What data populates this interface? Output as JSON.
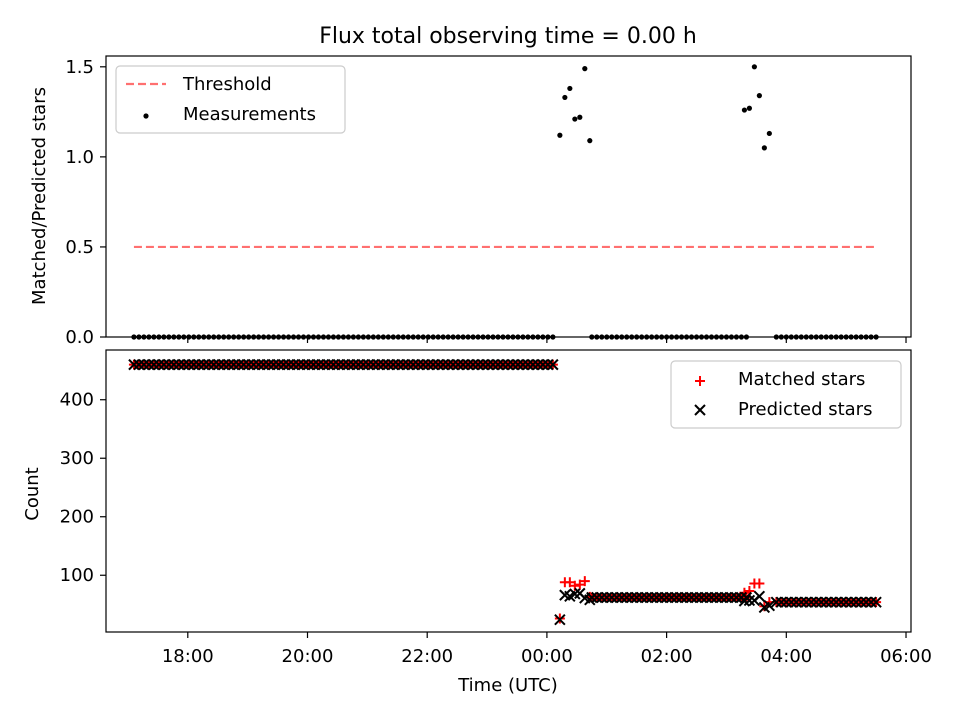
{
  "title": "Flux total observing time = 0.00 h",
  "xlabel": "Time (UTC)",
  "x_ticks": [
    "18:00",
    "20:00",
    "22:00",
    "00:00",
    "02:00",
    "04:00",
    "06:00"
  ],
  "chart_data": [
    {
      "type": "scatter",
      "ylabel": "Matched/Predicted stars",
      "ylim": [
        0,
        1.56
      ],
      "y_ticks": [
        "0.0",
        "0.5",
        "1.0",
        "1.5"
      ],
      "xlim": [
        "16:38",
        "06:05"
      ],
      "legend_location": "top-left",
      "legend": {
        "threshold": "Threshold",
        "measurements": "Measurements"
      },
      "threshold": {
        "name": "Threshold",
        "color": "#ff7070",
        "style": "dashed",
        "value": 0.5,
        "x_start": "17:06",
        "x_end": "05:30"
      },
      "measurements": {
        "name": "Measurements",
        "color": "#000000",
        "zero_segments": [
          {
            "start": "17:06",
            "end": "00:10",
            "step_minutes": 5,
            "value": 0.0
          },
          {
            "start": "00:45",
            "end": "03:20",
            "step_minutes": 5,
            "value": 0.0
          },
          {
            "start": "03:50",
            "end": "05:30",
            "step_minutes": 5,
            "value": 0.0
          }
        ],
        "points": [
          {
            "x": "00:13",
            "y": 1.12
          },
          {
            "x": "00:18",
            "y": 1.33
          },
          {
            "x": "00:23",
            "y": 1.38
          },
          {
            "x": "00:28",
            "y": 1.21
          },
          {
            "x": "00:33",
            "y": 1.22
          },
          {
            "x": "00:38",
            "y": 1.49
          },
          {
            "x": "00:43",
            "y": 1.09
          },
          {
            "x": "03:18",
            "y": 1.26
          },
          {
            "x": "03:23",
            "y": 1.27
          },
          {
            "x": "03:28",
            "y": 1.5
          },
          {
            "x": "03:33",
            "y": 1.34
          },
          {
            "x": "03:38",
            "y": 1.05
          },
          {
            "x": "03:43",
            "y": 1.13
          }
        ]
      }
    },
    {
      "type": "scatter",
      "ylabel": "Count",
      "ylim": [
        3,
        485
      ],
      "y_ticks": [
        "100",
        "200",
        "300",
        "400"
      ],
      "xlim": [
        "16:38",
        "06:05"
      ],
      "legend_location": "top-right",
      "legend": {
        "matched": "Matched stars",
        "predicted": "Predicted stars"
      },
      "matched": {
        "name": "Matched stars",
        "color": "#ff0000",
        "marker": "plus",
        "segments": [
          {
            "start": "17:06",
            "end": "00:10",
            "step_minutes": 5,
            "value": 460
          },
          {
            "start": "00:45",
            "end": "03:20",
            "step_minutes": 5,
            "value": 62
          },
          {
            "start": "03:50",
            "end": "05:30",
            "step_minutes": 5,
            "value": 54
          }
        ],
        "points": [
          {
            "x": "00:13",
            "y": 26
          },
          {
            "x": "00:18",
            "y": 88
          },
          {
            "x": "00:23",
            "y": 88
          },
          {
            "x": "00:28",
            "y": 82
          },
          {
            "x": "00:33",
            "y": 84
          },
          {
            "x": "00:38",
            "y": 90
          },
          {
            "x": "00:43",
            "y": 63
          },
          {
            "x": "03:18",
            "y": 70
          },
          {
            "x": "03:23",
            "y": 73
          },
          {
            "x": "03:28",
            "y": 86
          },
          {
            "x": "03:33",
            "y": 86
          },
          {
            "x": "03:38",
            "y": 47
          },
          {
            "x": "03:43",
            "y": 54
          }
        ]
      },
      "predicted": {
        "name": "Predicted stars",
        "color": "#000000",
        "marker": "x",
        "points": [
          {
            "x": "00:13",
            "y": 24
          },
          {
            "x": "00:18",
            "y": 66
          },
          {
            "x": "00:23",
            "y": 64
          },
          {
            "x": "00:28",
            "y": 68
          },
          {
            "x": "00:33",
            "y": 69
          },
          {
            "x": "00:38",
            "y": 61
          },
          {
            "x": "00:43",
            "y": 58
          },
          {
            "x": "03:18",
            "y": 56
          },
          {
            "x": "03:23",
            "y": 57
          },
          {
            "x": "03:28",
            "y": 57
          },
          {
            "x": "03:33",
            "y": 64
          },
          {
            "x": "03:38",
            "y": 45
          },
          {
            "x": "03:43",
            "y": 48
          }
        ]
      }
    }
  ]
}
